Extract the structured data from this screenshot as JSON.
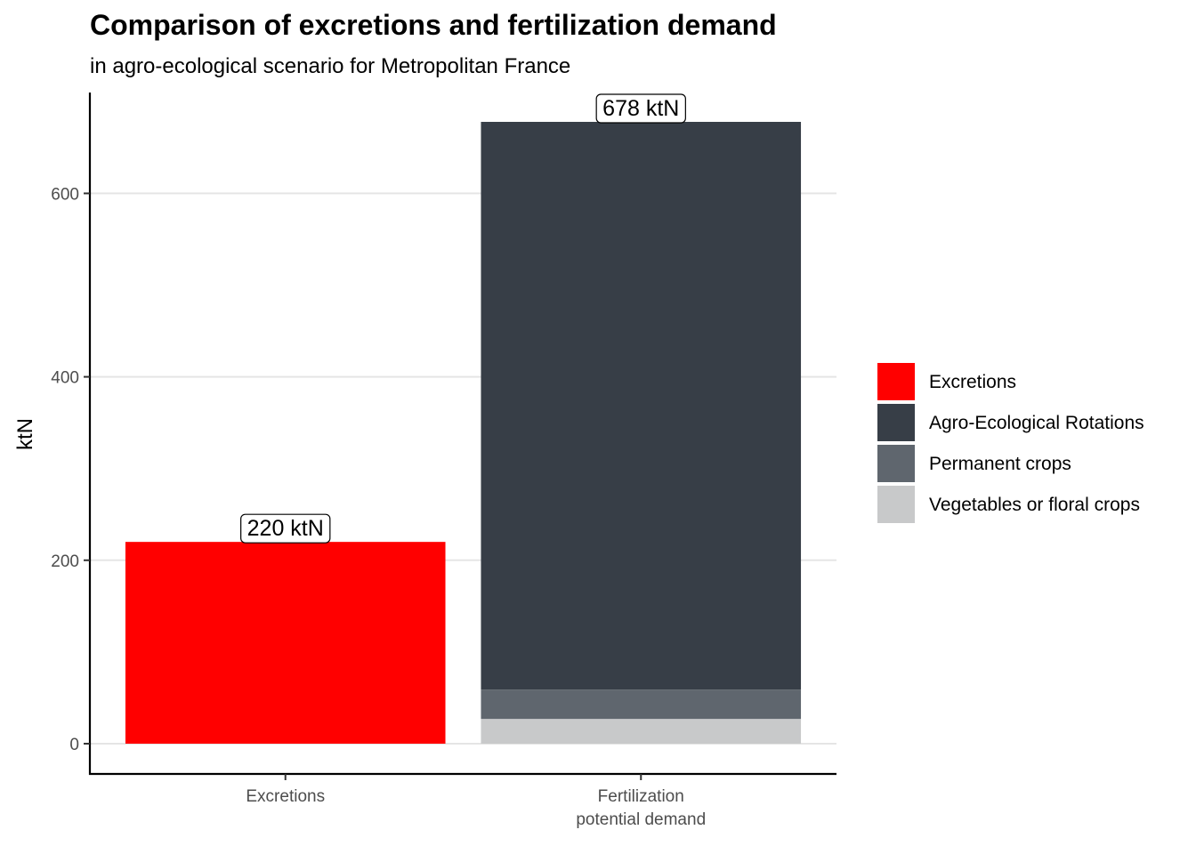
{
  "chart_data": {
    "type": "bar",
    "stacked": true,
    "title": "Comparison of excretions and fertilization demand",
    "subtitle": "in agro-ecological scenario for Metropolitan France",
    "xlabel": "",
    "ylabel": "ktN",
    "ylim": [
      -33,
      710
    ],
    "yticks": [
      0,
      200,
      400,
      600
    ],
    "grid": "horizontal",
    "legend_position": "right",
    "categories": [
      [
        "Excretions"
      ],
      [
        "Fertilization",
        "potential demand"
      ]
    ],
    "series": [
      {
        "name": "Excretions",
        "color": "#ff0000",
        "values": [
          220,
          0
        ]
      },
      {
        "name": "Agro-Ecological Rotations",
        "color": "#373e47",
        "values": [
          0,
          619
        ]
      },
      {
        "name": "Permanent crops",
        "color": "#5f666e",
        "values": [
          0,
          32
        ]
      },
      {
        "name": "Vegetables or floral crops",
        "color": "#c8c9ca",
        "values": [
          0,
          27
        ]
      }
    ],
    "stack_order_bottom_to_top": [
      3,
      2,
      1,
      0
    ],
    "totals": [
      220,
      678
    ],
    "total_labels": [
      "220 ktN",
      "678 ktN"
    ]
  }
}
